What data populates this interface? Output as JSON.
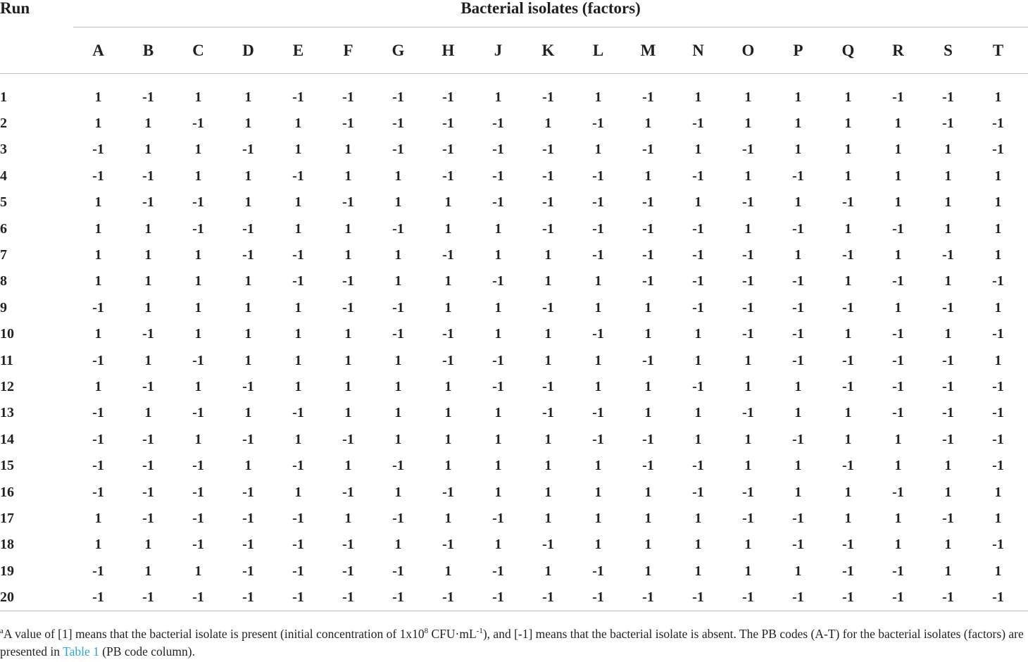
{
  "table": {
    "run_header": "Run",
    "group_header": "Bacterial isolates (factors)",
    "factors": [
      "A",
      "B",
      "C",
      "D",
      "E",
      "F",
      "G",
      "H",
      "J",
      "K",
      "L",
      "M",
      "N",
      "O",
      "P",
      "Q",
      "R",
      "S",
      "T"
    ],
    "rows": [
      {
        "run": "1",
        "v": [
          "1",
          "-1",
          "1",
          "1",
          "-1",
          "-1",
          "-1",
          "-1",
          "1",
          "-1",
          "1",
          "-1",
          "1",
          "1",
          "1",
          "1",
          "-1",
          "-1",
          "1"
        ]
      },
      {
        "run": "2",
        "v": [
          "1",
          "1",
          "-1",
          "1",
          "1",
          "-1",
          "-1",
          "-1",
          "-1",
          "1",
          "-1",
          "1",
          "-1",
          "1",
          "1",
          "1",
          "1",
          "-1",
          "-1"
        ]
      },
      {
        "run": "3",
        "v": [
          "-1",
          "1",
          "1",
          "-1",
          "1",
          "1",
          "-1",
          "-1",
          "-1",
          "-1",
          "1",
          "-1",
          "1",
          "-1",
          "1",
          "1",
          "1",
          "1",
          "-1"
        ]
      },
      {
        "run": "4",
        "v": [
          "-1",
          "-1",
          "1",
          "1",
          "-1",
          "1",
          "1",
          "-1",
          "-1",
          "-1",
          "-1",
          "1",
          "-1",
          "1",
          "-1",
          "1",
          "1",
          "1",
          "1"
        ]
      },
      {
        "run": "5",
        "v": [
          "1",
          "-1",
          "-1",
          "1",
          "1",
          "-1",
          "1",
          "1",
          "-1",
          "-1",
          "-1",
          "-1",
          "1",
          "-1",
          "1",
          "-1",
          "1",
          "1",
          "1"
        ]
      },
      {
        "run": "6",
        "v": [
          "1",
          "1",
          "-1",
          "-1",
          "1",
          "1",
          "-1",
          "1",
          "1",
          "-1",
          "-1",
          "-1",
          "-1",
          "1",
          "-1",
          "1",
          "-1",
          "1",
          "1"
        ]
      },
      {
        "run": "7",
        "v": [
          "1",
          "1",
          "1",
          "-1",
          "-1",
          "1",
          "1",
          "-1",
          "1",
          "1",
          "-1",
          "-1",
          "-1",
          "-1",
          "1",
          "-1",
          "1",
          "-1",
          "1"
        ]
      },
      {
        "run": "8",
        "v": [
          "1",
          "1",
          "1",
          "1",
          "-1",
          "-1",
          "1",
          "1",
          "-1",
          "1",
          "1",
          "-1",
          "-1",
          "-1",
          "-1",
          "1",
          "-1",
          "1",
          "-1"
        ]
      },
      {
        "run": "9",
        "v": [
          "-1",
          "1",
          "1",
          "1",
          "1",
          "-1",
          "-1",
          "1",
          "1",
          "-1",
          "1",
          "1",
          "-1",
          "-1",
          "-1",
          "-1",
          "1",
          "-1",
          "1"
        ]
      },
      {
        "run": "10",
        "v": [
          "1",
          "-1",
          "1",
          "1",
          "1",
          "1",
          "-1",
          "-1",
          "1",
          "1",
          "-1",
          "1",
          "1",
          "-1",
          "-1",
          "1",
          "-1",
          "1",
          "-1"
        ]
      },
      {
        "run": "11",
        "v": [
          "-1",
          "1",
          "-1",
          "1",
          "1",
          "1",
          "1",
          "-1",
          "-1",
          "1",
          "1",
          "-1",
          "1",
          "1",
          "-1",
          "-1",
          "-1",
          "-1",
          "1"
        ]
      },
      {
        "run": "12",
        "v": [
          "1",
          "-1",
          "1",
          "-1",
          "1",
          "1",
          "1",
          "1",
          "-1",
          "-1",
          "1",
          "1",
          "-1",
          "1",
          "1",
          "-1",
          "-1",
          "-1",
          "-1"
        ]
      },
      {
        "run": "13",
        "v": [
          "-1",
          "1",
          "-1",
          "1",
          "-1",
          "1",
          "1",
          "1",
          "1",
          "-1",
          "-1",
          "1",
          "1",
          "-1",
          "1",
          "1",
          "-1",
          "-1",
          "-1"
        ]
      },
      {
        "run": "14",
        "v": [
          "-1",
          "-1",
          "1",
          "-1",
          "1",
          "-1",
          "1",
          "1",
          "1",
          "1",
          "-1",
          "-1",
          "1",
          "1",
          "-1",
          "1",
          "1",
          "-1",
          "-1"
        ]
      },
      {
        "run": "15",
        "v": [
          "-1",
          "-1",
          "-1",
          "1",
          "-1",
          "1",
          "-1",
          "1",
          "1",
          "1",
          "1",
          "-1",
          "-1",
          "1",
          "1",
          "-1",
          "1",
          "1",
          "-1"
        ]
      },
      {
        "run": "16",
        "v": [
          "-1",
          "-1",
          "-1",
          "-1",
          "1",
          "-1",
          "1",
          "-1",
          "1",
          "1",
          "1",
          "1",
          "-1",
          "-1",
          "1",
          "1",
          "-1",
          "1",
          "1"
        ]
      },
      {
        "run": "17",
        "v": [
          "1",
          "-1",
          "-1",
          "-1",
          "-1",
          "1",
          "-1",
          "1",
          "-1",
          "1",
          "1",
          "1",
          "1",
          "-1",
          "-1",
          "1",
          "1",
          "-1",
          "1"
        ]
      },
      {
        "run": "18",
        "v": [
          "1",
          "1",
          "-1",
          "-1",
          "-1",
          "-1",
          "1",
          "-1",
          "1",
          "-1",
          "1",
          "1",
          "1",
          "1",
          "-1",
          "-1",
          "1",
          "1",
          "-1"
        ]
      },
      {
        "run": "19",
        "v": [
          "-1",
          "1",
          "1",
          "-1",
          "-1",
          "-1",
          "-1",
          "1",
          "-1",
          "1",
          "-1",
          "1",
          "1",
          "1",
          "1",
          "-1",
          "-1",
          "1",
          "1"
        ]
      },
      {
        "run": "20",
        "v": [
          "-1",
          "-1",
          "-1",
          "-1",
          "-1",
          "-1",
          "-1",
          "-1",
          "-1",
          "-1",
          "-1",
          "-1",
          "-1",
          "-1",
          "-1",
          "-1",
          "-1",
          "-1",
          "-1"
        ]
      }
    ]
  },
  "footnote": {
    "marker": "a",
    "text1": "A value of [1] means that the bacterial isolate is present (initial concentration of 1x10",
    "exp1": "8",
    "text2": " CFU·mL",
    "exp2": "-1",
    "text3": "), and [-1] means that the bacterial isolate is absent. The PB codes (A-T) for the bacterial isolates (factors) are presented in ",
    "link_text": "Table 1",
    "text4": " (PB code column)."
  }
}
